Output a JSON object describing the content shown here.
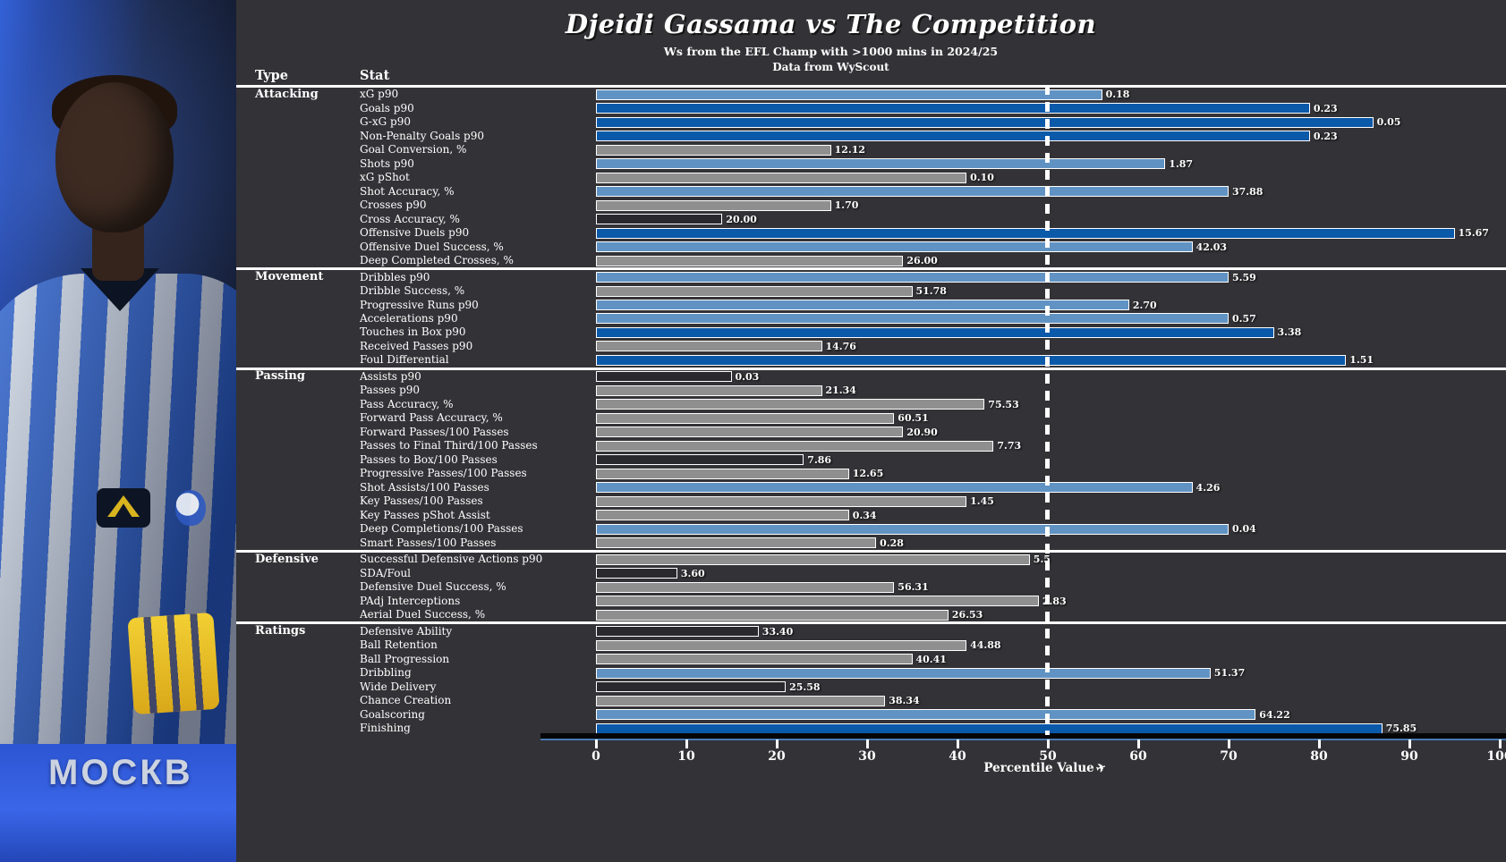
{
  "header": {
    "title": "Djeidi Gassama vs The Competition",
    "subtitle": "Ws from the EFL Champ with >1000 mins in 2024/25",
    "source": "Data from WyScout"
  },
  "columns": {
    "type": "Type",
    "stat": "Stat"
  },
  "photo": {
    "board_text": "МОСКВ"
  },
  "axis": {
    "ticks": [
      0,
      10,
      20,
      30,
      40,
      50,
      60,
      70,
      80,
      90,
      100
    ],
    "label": "Percentile Value",
    "icon": "paper-plane-icon",
    "icon_glyph": "✈"
  },
  "colors": {
    "background": "#333236",
    "tier_high": "#0b59a9",
    "tier_above": "#6093c3",
    "tier_mid": "#8f8f8f",
    "tier_low": "#2a292d",
    "midline": "#ffffff",
    "axis_underline": "#4779b4"
  },
  "chart_data": {
    "type": "bar",
    "orientation": "horizontal",
    "title": "Djeidi Gassama vs The Competition",
    "xlabel": "Percentile Value",
    "xlim": [
      0,
      100
    ],
    "reference_line": 50,
    "legend": "bar color encodes tier: high=dark blue, above average=light blue, mid=gray, low=dark",
    "sections": [
      {
        "name": "Attacking",
        "rows": [
          {
            "stat": "xG p90",
            "value": "0.18",
            "percentile": 56,
            "tier": "above"
          },
          {
            "stat": "Goals p90",
            "value": "0.23",
            "percentile": 79,
            "tier": "high"
          },
          {
            "stat": "G-xG p90",
            "value": "0.05",
            "percentile": 86,
            "tier": "high"
          },
          {
            "stat": "Non-Penalty Goals p90",
            "value": "0.23",
            "percentile": 79,
            "tier": "high"
          },
          {
            "stat": "Goal Conversion, %",
            "value": "12.12",
            "percentile": 26,
            "tier": "mid"
          },
          {
            "stat": "Shots p90",
            "value": "1.87",
            "percentile": 63,
            "tier": "above"
          },
          {
            "stat": "xG pShot",
            "value": "0.10",
            "percentile": 41,
            "tier": "mid"
          },
          {
            "stat": "Shot Accuracy, %",
            "value": "37.88",
            "percentile": 70,
            "tier": "above"
          },
          {
            "stat": "Crosses p90",
            "value": "1.70",
            "percentile": 26,
            "tier": "mid"
          },
          {
            "stat": "Cross Accuracy, %",
            "value": "20.00",
            "percentile": 14,
            "tier": "low"
          },
          {
            "stat": "Offensive Duels p90",
            "value": "15.67",
            "percentile": 95,
            "tier": "high"
          },
          {
            "stat": "Offensive Duel Success, %",
            "value": "42.03",
            "percentile": 66,
            "tier": "above"
          },
          {
            "stat": "Deep Completed Crosses, %",
            "value": "26.00",
            "percentile": 34,
            "tier": "mid"
          }
        ]
      },
      {
        "name": "Movement",
        "rows": [
          {
            "stat": "Dribbles p90",
            "value": "5.59",
            "percentile": 70,
            "tier": "above"
          },
          {
            "stat": "Dribble Success, %",
            "value": "51.78",
            "percentile": 35,
            "tier": "mid"
          },
          {
            "stat": "Progressive Runs p90",
            "value": "2.70",
            "percentile": 59,
            "tier": "above"
          },
          {
            "stat": "Accelerations p90",
            "value": "0.57",
            "percentile": 70,
            "tier": "above"
          },
          {
            "stat": "Touches in Box p90",
            "value": "3.38",
            "percentile": 75,
            "tier": "high"
          },
          {
            "stat": "Received Passes p90",
            "value": "14.76",
            "percentile": 25,
            "tier": "mid"
          },
          {
            "stat": "Foul Differential",
            "value": "1.51",
            "percentile": 83,
            "tier": "high"
          }
        ]
      },
      {
        "name": "Passing",
        "rows": [
          {
            "stat": "Assists p90",
            "value": "0.03",
            "percentile": 15,
            "tier": "low"
          },
          {
            "stat": "Passes p90",
            "value": "21.34",
            "percentile": 25,
            "tier": "mid"
          },
          {
            "stat": "Pass Accuracy, %",
            "value": "75.53",
            "percentile": 43,
            "tier": "mid"
          },
          {
            "stat": "Forward Pass Accuracy, %",
            "value": "60.51",
            "percentile": 33,
            "tier": "mid"
          },
          {
            "stat": "Forward Passes/100 Passes",
            "value": "20.90",
            "percentile": 34,
            "tier": "mid"
          },
          {
            "stat": "Passes to Final Third/100 Passes",
            "value": "7.73",
            "percentile": 44,
            "tier": "mid"
          },
          {
            "stat": "Passes to Box/100 Passes",
            "value": "7.86",
            "percentile": 23,
            "tier": "low"
          },
          {
            "stat": "Progressive Passes/100 Passes",
            "value": "12.65",
            "percentile": 28,
            "tier": "mid"
          },
          {
            "stat": "Shot Assists/100 Passes",
            "value": "4.26",
            "percentile": 66,
            "tier": "above"
          },
          {
            "stat": "Key Passes/100 Passes",
            "value": "1.45",
            "percentile": 41,
            "tier": "mid"
          },
          {
            "stat": "Key Passes pShot Assist",
            "value": "0.34",
            "percentile": 28,
            "tier": "mid"
          },
          {
            "stat": "Deep Completions/100 Passes",
            "value": "0.04",
            "percentile": 70,
            "tier": "above"
          },
          {
            "stat": "Smart Passes/100 Passes",
            "value": "0.28",
            "percentile": 31,
            "tier": "mid"
          }
        ]
      },
      {
        "name": "Defensive",
        "rows": [
          {
            "stat": "Successful Defensive Actions p90",
            "value": "5.5",
            "percentile": 48,
            "tier": "mid"
          },
          {
            "stat": "SDA/Foul",
            "value": "3.60",
            "percentile": 9,
            "tier": "low"
          },
          {
            "stat": "Defensive Duel Success, %",
            "value": "56.31",
            "percentile": 33,
            "tier": "mid"
          },
          {
            "stat": "PAdj Interceptions",
            "value": "2.83",
            "percentile": 49,
            "tier": "mid"
          },
          {
            "stat": "Aerial Duel Success, %",
            "value": "26.53",
            "percentile": 39,
            "tier": "mid"
          }
        ]
      },
      {
        "name": "Ratings",
        "rows": [
          {
            "stat": "Defensive Ability",
            "value": "33.40",
            "percentile": 18,
            "tier": "low"
          },
          {
            "stat": "Ball Retention",
            "value": "44.88",
            "percentile": 41,
            "tier": "mid"
          },
          {
            "stat": "Ball Progression",
            "value": "40.41",
            "percentile": 35,
            "tier": "mid"
          },
          {
            "stat": "Dribbling",
            "value": "51.37",
            "percentile": 68,
            "tier": "above"
          },
          {
            "stat": "Wide Delivery",
            "value": "25.58",
            "percentile": 21,
            "tier": "low"
          },
          {
            "stat": "Chance Creation",
            "value": "38.34",
            "percentile": 32,
            "tier": "mid"
          },
          {
            "stat": "Goalscoring",
            "value": "64.22",
            "percentile": 73,
            "tier": "above"
          },
          {
            "stat": "Finishing",
            "value": "75.85",
            "percentile": 87,
            "tier": "high"
          }
        ]
      }
    ]
  }
}
